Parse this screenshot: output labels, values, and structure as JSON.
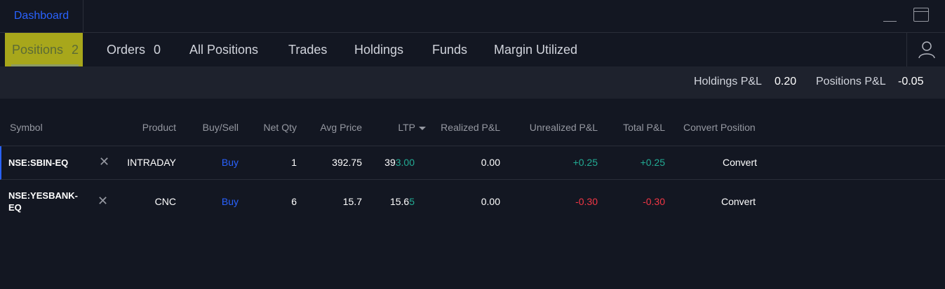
{
  "titlebar": {
    "dashboard_tab": "Dashboard"
  },
  "tabs": [
    {
      "label": "Positions",
      "count": "2"
    },
    {
      "label": "Orders",
      "count": "0"
    },
    {
      "label": "All Positions"
    },
    {
      "label": "Trades"
    },
    {
      "label": "Holdings"
    },
    {
      "label": "Funds"
    },
    {
      "label": "Margin Utilized"
    }
  ],
  "pnl": {
    "holdings_label": "Holdings P&L",
    "holdings_value": "0.20",
    "positions_label": "Positions P&L",
    "positions_value": "-0.05"
  },
  "table": {
    "headers": [
      "Symbol",
      "Product",
      "Buy/Sell",
      "Net Qty",
      "Avg Price",
      "LTP",
      "Realized P&L",
      "Unrealized P&L",
      "Total P&L",
      "Convert Position"
    ],
    "sorted_column": "LTP",
    "rows": [
      {
        "symbol": "NSE:SBIN-EQ",
        "product": "INTRADAY",
        "side": "Buy",
        "net_qty": "1",
        "avg_price": "392.75",
        "ltp_base": "39",
        "ltp_changed": "3.00",
        "realized": "0.00",
        "unrealized": "+0.25",
        "total": "+0.25",
        "convert": "Convert"
      },
      {
        "symbol_line1": "NSE:YESBANK-",
        "symbol_line2": "EQ",
        "product": "CNC",
        "side": "Buy",
        "net_qty": "6",
        "avg_price": "15.7",
        "ltp_base": "15.6",
        "ltp_changed": "5",
        "realized": "0.00",
        "unrealized": "-0.30",
        "total": "-0.30",
        "convert": "Convert"
      }
    ]
  },
  "colors": {
    "accent": "#2962ff",
    "profit": "#22ab94",
    "loss": "#f23645",
    "active_tab_bg": "#a8a71b"
  },
  "icons": {
    "remove": "close-icon",
    "user": "user-icon",
    "sort": "caret-down-icon"
  }
}
